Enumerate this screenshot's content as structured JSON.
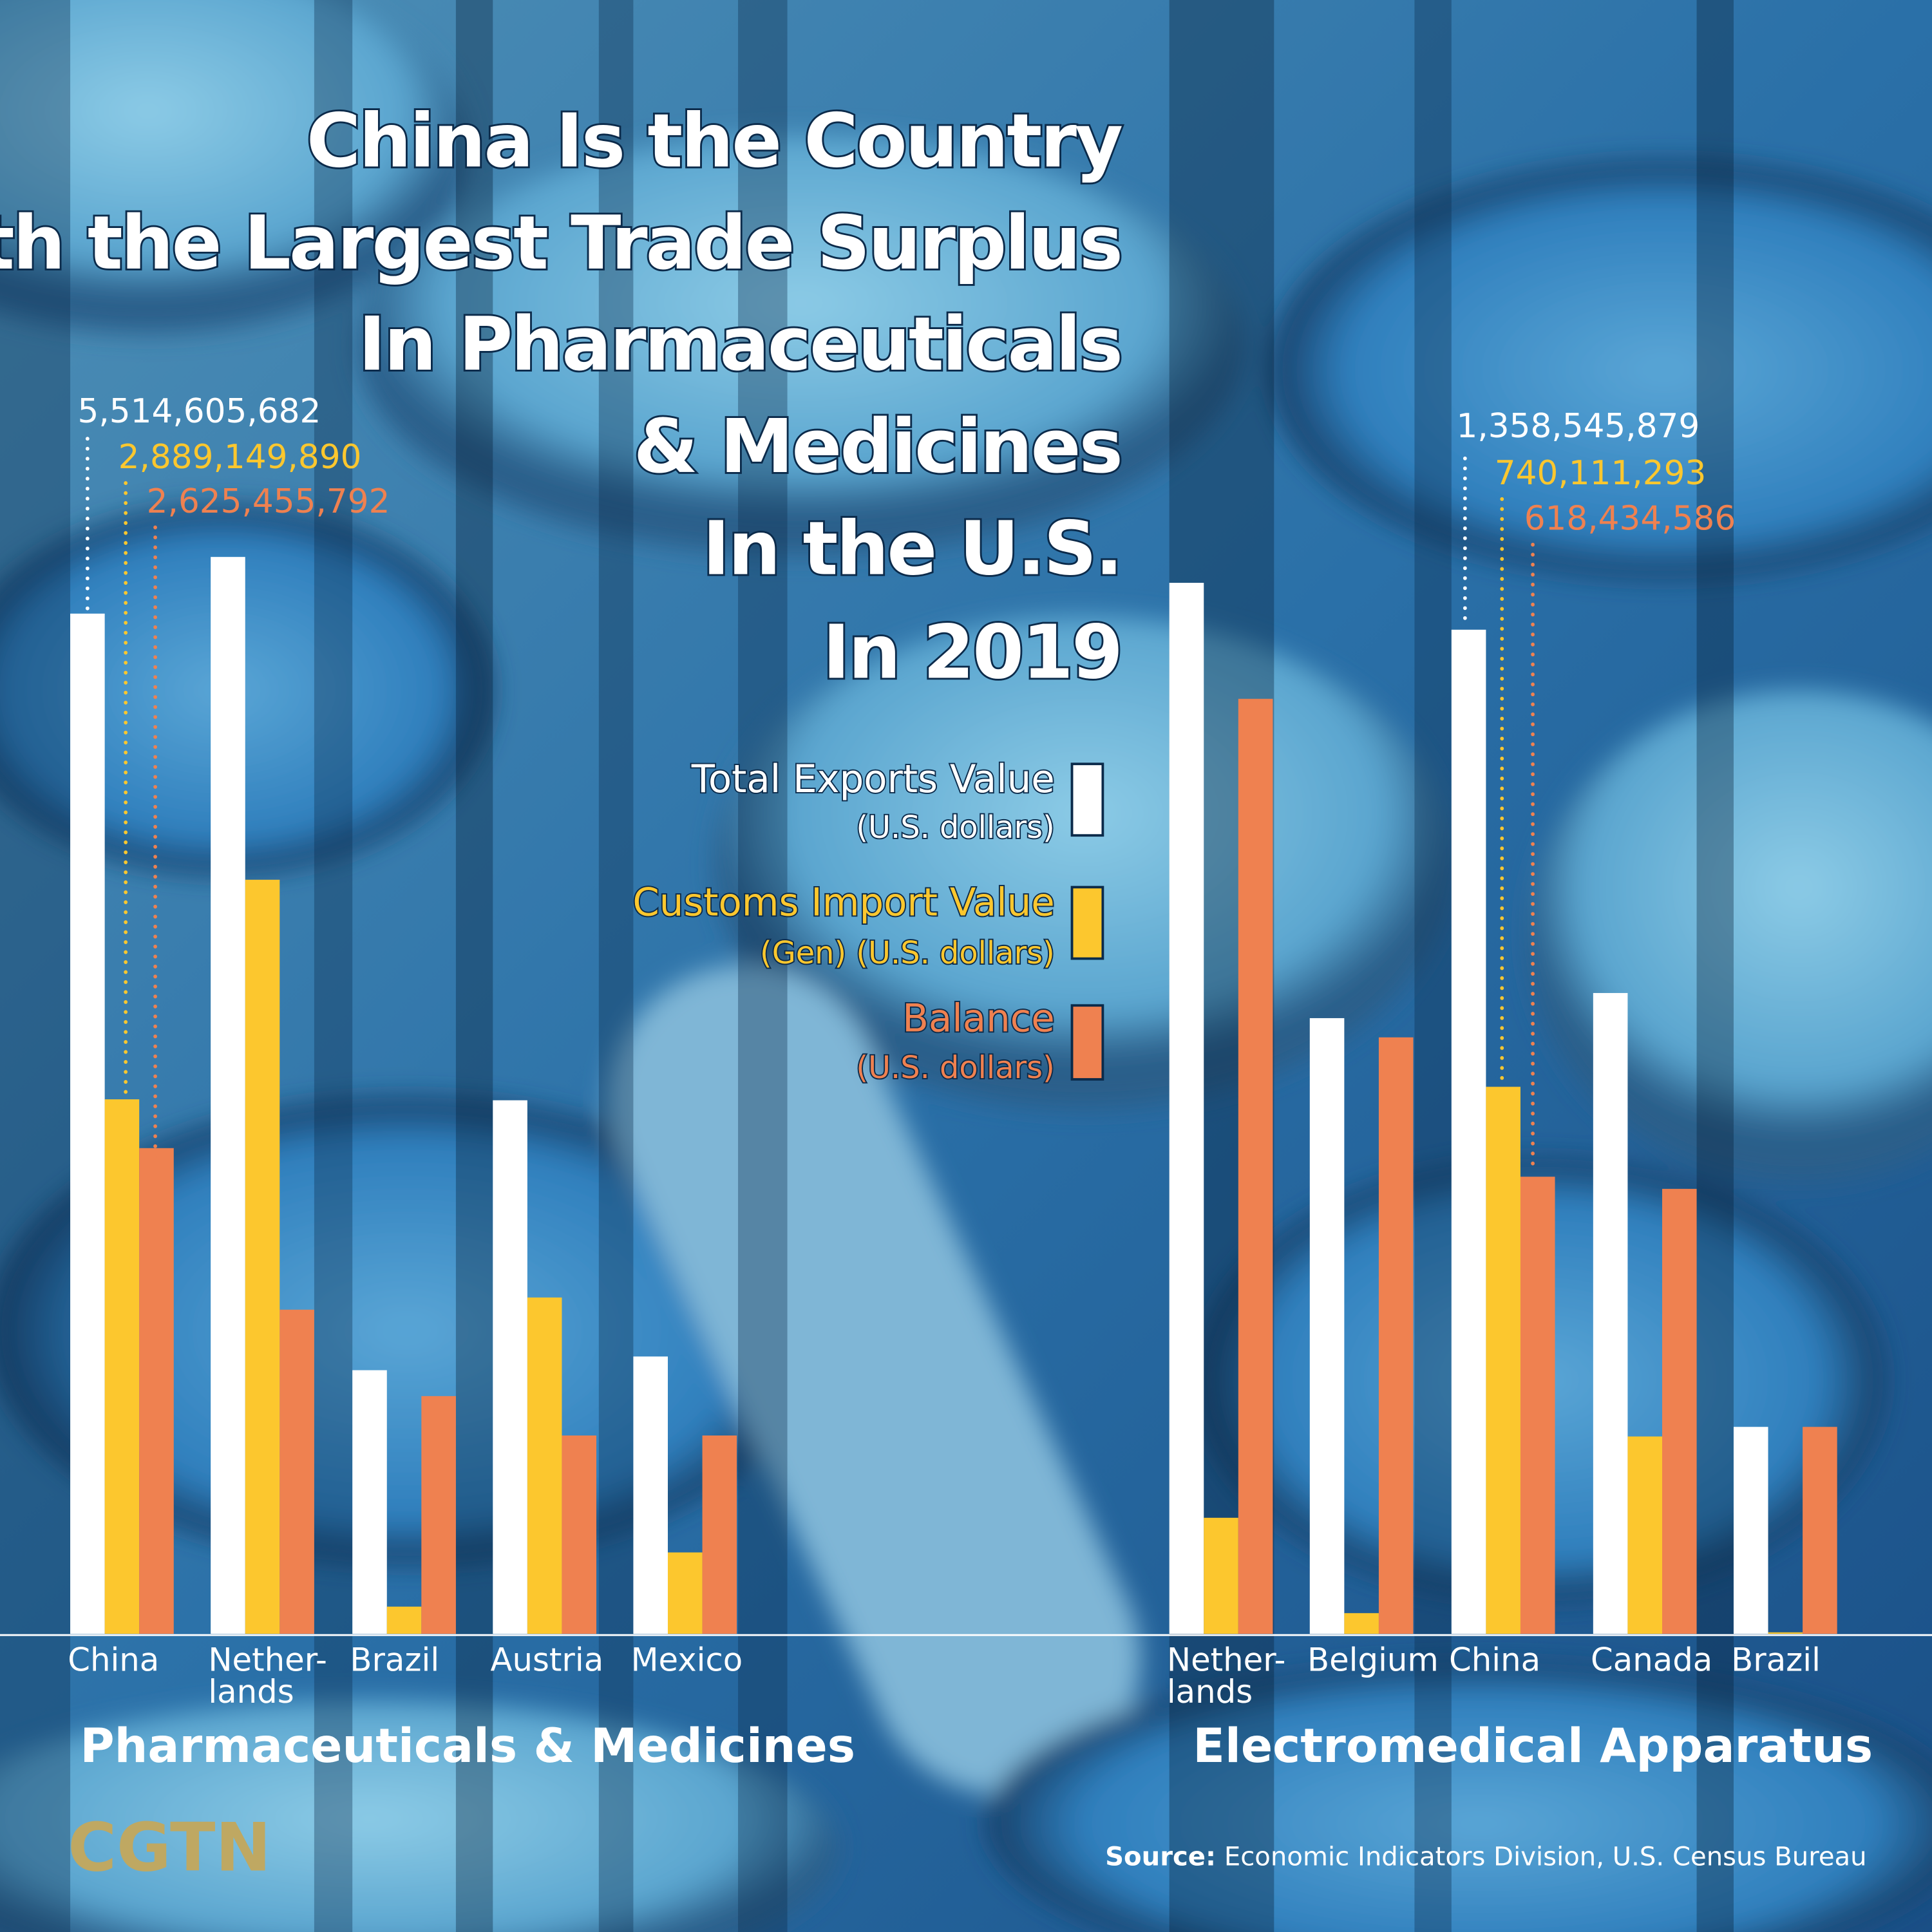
{
  "title_lines": [
    "China Is the Country",
    "With the Largest Trade Surplus",
    "In Pharmaceuticals",
    "& Medicines",
    "In the U.S.",
    "In 2019"
  ],
  "legend": [
    {
      "label": "Total Exports Value",
      "sub": "(U.S. dollars)",
      "color": "#ffffff"
    },
    {
      "label": "Customs Import Value",
      "sub": "(Gen) (U.S. dollars)",
      "color": "#fcc72e"
    },
    {
      "label": "Balance",
      "sub": "(U.S. dollars)",
      "color": "#ef8150"
    }
  ],
  "chart_data": [
    {
      "type": "bar",
      "title": "Pharmaceuticals & Medicines",
      "categories": [
        "China",
        "Nether-\nlands",
        "Brazil",
        "Austria",
        "Mexico"
      ],
      "unit": "U.S. dollars",
      "series": [
        {
          "name": "Total Exports Value",
          "values": [
            5514605682,
            5821000000,
            1425000000,
            2884000000,
            1499000000
          ]
        },
        {
          "name": "Customs Import Value",
          "values": [
            2889149890,
            4076000000,
            147000000,
            1818000000,
            440000000
          ]
        },
        {
          "name": "Balance",
          "values": [
            2625455792,
            1752000000,
            1285000000,
            1072000000,
            1072000000
          ]
        }
      ],
      "annotations": [
        "5,514,605,682",
        "2,889,149,890",
        "2,625,455,792"
      ],
      "ylim": [
        0,
        5821000000
      ]
    },
    {
      "type": "bar",
      "title": "Electromedical Apparatus",
      "categories": [
        "Nether-\nlands",
        "Belgium",
        "China",
        "Canada",
        "Brazil"
      ],
      "unit": "U.S. dollars",
      "series": [
        {
          "name": "Total Exports Value",
          "values": [
            1422000000,
            833000000,
            1358545879,
            867000000,
            280000000
          ]
        },
        {
          "name": "Customs Import Value",
          "values": [
            157000000,
            28000000,
            740111293,
            267000000,
            2000000
          ]
        },
        {
          "name": "Balance",
          "values": [
            1265000000,
            807000000,
            618434586,
            602000000,
            280000000
          ]
        }
      ],
      "annotations": [
        "1,358,545,879",
        "740,111,293",
        "618,434,586"
      ],
      "ylim": [
        0,
        1422000000
      ]
    }
  ],
  "logo": "CGTN",
  "source": {
    "label": "Source:",
    "text": "Economic Indicators Division, U.S. Census Bureau"
  }
}
